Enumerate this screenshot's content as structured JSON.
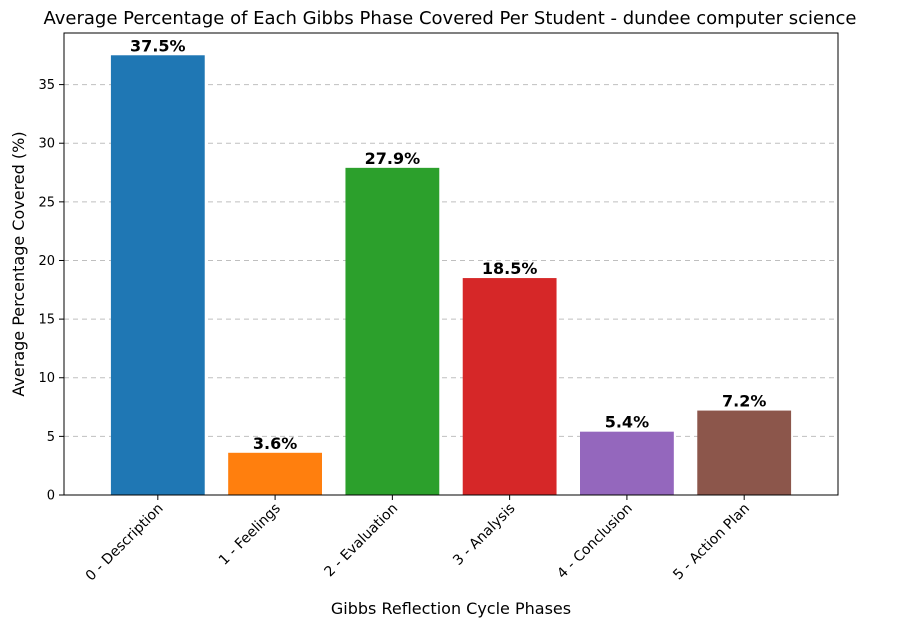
{
  "chart_data": {
    "type": "bar",
    "title": "Average Percentage of Each Gibbs Phase Covered Per Student - dundee computer science",
    "xlabel": "Gibbs Reflection Cycle Phases",
    "ylabel": "Average Percentage Covered (%)",
    "categories": [
      "0 - Description",
      "1 - Feelings",
      "2 - Evaluation",
      "3 - Analysis",
      "4 - Conclusion",
      "5 - Action Plan"
    ],
    "values": [
      37.5,
      3.6,
      27.9,
      18.5,
      5.4,
      7.2
    ],
    "data_labels": [
      "37.5%",
      "3.6%",
      "27.9%",
      "18.5%",
      "5.4%",
      "7.2%"
    ],
    "colors": [
      "#1f77b4",
      "#ff7f0e",
      "#2ca02c",
      "#d62728",
      "#9467bd",
      "#8c564b"
    ],
    "ylim": [
      0,
      39.4
    ],
    "yticks": [
      0,
      5,
      10,
      15,
      20,
      25,
      30,
      35
    ],
    "grid": "y-dashed",
    "legend": "none"
  }
}
